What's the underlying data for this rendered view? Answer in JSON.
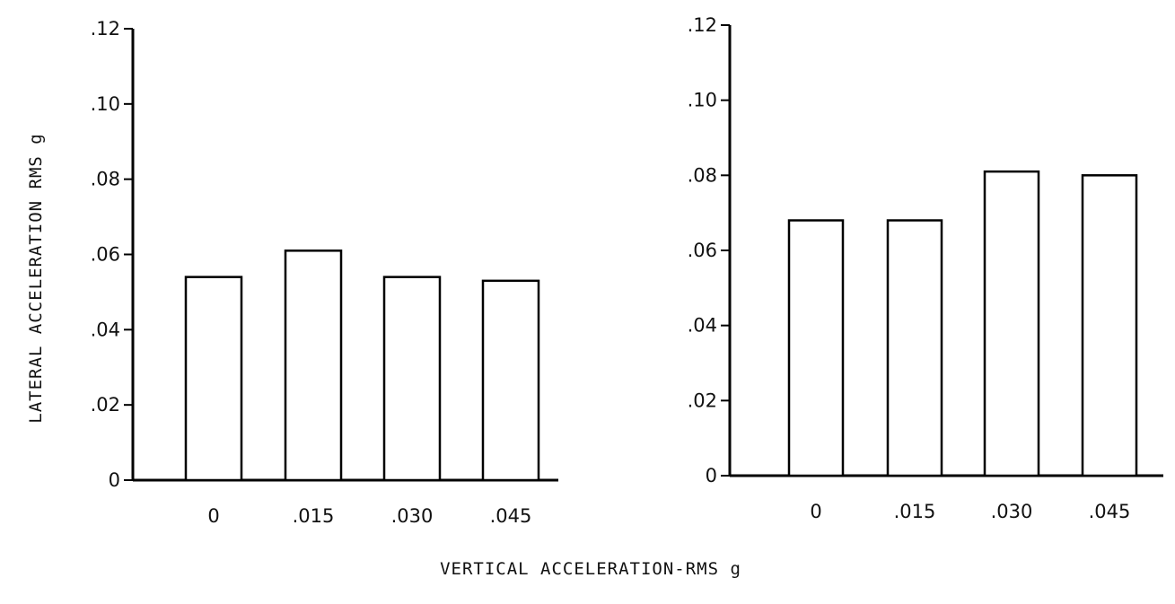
{
  "figure": {
    "ylabel": "LATERAL ACCELERATION RMS g",
    "xlabel": "VERTICAL ACCELERATION-RMS g"
  },
  "chart_data": [
    {
      "type": "bar",
      "categories": [
        "0",
        ".015",
        ".030",
        ".045"
      ],
      "values": [
        0.054,
        0.061,
        0.054,
        0.053
      ],
      "ylim": [
        0,
        0.12
      ],
      "yticks": [
        {
          "value": 0,
          "label": "0"
        },
        {
          "value": 0.02,
          "label": ".02"
        },
        {
          "value": 0.04,
          "label": ".04"
        },
        {
          "value": 0.06,
          "label": ".06"
        },
        {
          "value": 0.08,
          "label": ".08"
        },
        {
          "value": 0.1,
          "label": ".10"
        },
        {
          "value": 0.12,
          "label": ".12"
        }
      ],
      "grid": false,
      "bar_fill": "#ffffff",
      "bar_stroke": "#000000"
    },
    {
      "type": "bar",
      "categories": [
        "0",
        ".015",
        ".030",
        ".045"
      ],
      "values": [
        0.068,
        0.068,
        0.081,
        0.08
      ],
      "ylim": [
        0,
        0.12
      ],
      "yticks": [
        {
          "value": 0,
          "label": "0"
        },
        {
          "value": 0.02,
          "label": ".02"
        },
        {
          "value": 0.04,
          "label": ".04"
        },
        {
          "value": 0.06,
          "label": ".06"
        },
        {
          "value": 0.08,
          "label": ".08"
        },
        {
          "value": 0.1,
          "label": ".10"
        },
        {
          "value": 0.12,
          "label": ".12"
        }
      ],
      "grid": false,
      "bar_fill": "#ffffff",
      "bar_stroke": "#000000"
    }
  ]
}
